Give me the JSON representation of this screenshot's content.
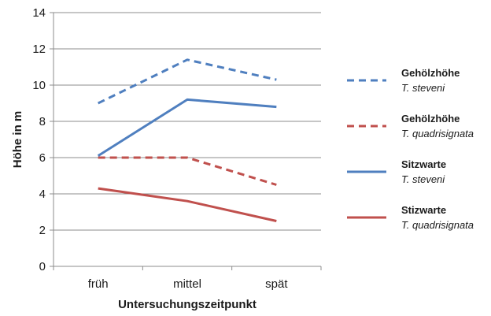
{
  "chart_data": {
    "type": "line",
    "categories": [
      "früh",
      "mittel",
      "spät"
    ],
    "xlabel": "Untersuchungszeitpunkt",
    "ylabel": "Höhe in m",
    "ylim": [
      0,
      14
    ],
    "yticks": [
      0,
      2,
      4,
      6,
      8,
      10,
      12,
      14
    ],
    "grid": true,
    "legend_position": "right",
    "series": [
      {
        "name": "Gehölzhöhe",
        "species": "T. steveni",
        "values": [
          9.0,
          11.4,
          10.3
        ],
        "color": "#4f7fbf",
        "dashed": true
      },
      {
        "name": "Gehölzhöhe",
        "species": "T. quadrisignata",
        "values": [
          6.0,
          6.0,
          4.5
        ],
        "color": "#c0504d",
        "dashed": true
      },
      {
        "name": "Sitzwarte",
        "species": "T. steveni",
        "values": [
          6.1,
          9.2,
          8.8
        ],
        "color": "#4f7fbf",
        "dashed": false
      },
      {
        "name": "Stizwarte",
        "species": "T. quadrisignata",
        "values": [
          4.3,
          3.6,
          2.5
        ],
        "color": "#c0504d",
        "dashed": false
      }
    ]
  }
}
